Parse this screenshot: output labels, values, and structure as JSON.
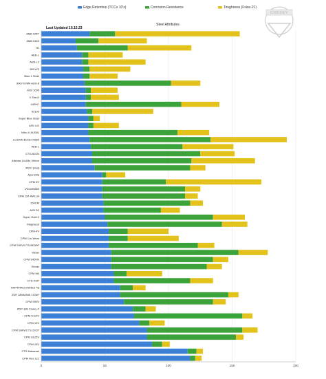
{
  "header": {
    "updated": "Last Updated 10.15.23",
    "logo_text": "CRESEY"
  },
  "colors": {
    "edge": "#3b7fd6",
    "corrosion": "#3ca33a",
    "toughness": "#e3c21b",
    "grid": "#e6e6e6",
    "axis": "#bbbbbb"
  },
  "chart_data": {
    "type": "bar",
    "orientation": "horizontal",
    "stacked": true,
    "title": "Steel Attributes",
    "legend_position": "top",
    "grid": true,
    "xlim": [
      0,
      200
    ],
    "xticks": [
      0,
      50,
      100,
      150,
      200
    ],
    "categories": [
      "AMB WRT",
      "AMB 5160",
      "H1",
      "AEB-L",
      "AEB-L2",
      "80CrV2",
      "Blue 1 Steel",
      "80CrV2/M4 AUS-8",
      "AISI 1095",
      "V-Toku2",
      "440HC",
      "52100",
      "Super Blue Steel",
      "AISI 4-E",
      "Nitro-V AUS8L",
      "LC200N Bohler N680",
      "AEB-L",
      "CTS-BD1N",
      "Alleima 14c28n Vitrum",
      "440C (real)",
      "AperuSta",
      "CPM 3V",
      "VG10/N680",
      "CPM 154 RWL34",
      "154CM",
      "AISI D2",
      "Super Gold 2",
      "Magnacut",
      "CPM-4V",
      "CPM Cru-Wear",
      "CPM S30V/CTS-BD30P",
      "Vanax",
      "CPM S45VN",
      "Elmax",
      "CPM M4",
      "CTS-XHP",
      "HAP40/REX76/REX 45",
      "ZDP 189/M398 / 20AP",
      "CPM S90V",
      "ZDP-189 Cowry X",
      "CPM S110V",
      "CPM 10V",
      "CPM S90V/CTS 20CP",
      "CPM S125V",
      "CPM 15V",
      "CTS Maxamet",
      "CPM Rex 121"
    ],
    "series": [
      {
        "name": "Edge Retention (TCCs 10's)",
        "values": [
          38,
          27,
          28,
          32,
          32,
          33,
          33,
          34,
          35,
          35,
          35,
          36,
          37,
          37,
          37,
          38,
          39,
          40,
          40,
          42,
          48,
          48,
          48,
          48,
          49,
          49,
          50,
          52,
          53,
          53,
          53,
          55,
          55,
          55,
          57,
          57,
          62,
          62,
          65,
          72,
          73,
          77,
          83,
          83,
          87,
          115,
          117
        ]
      },
      {
        "name": "Corrosion Resistance",
        "values": [
          20,
          18,
          40,
          5,
          5,
          5,
          5,
          68,
          4,
          4,
          75,
          4,
          4,
          4,
          70,
          95,
          72,
          85,
          78,
          75,
          3,
          50,
          65,
          65,
          68,
          45,
          85,
          90,
          15,
          15,
          70,
          100,
          80,
          75,
          10,
          60,
          10,
          85,
          70,
          10,
          85,
          8,
          75,
          70,
          8,
          7,
          4
        ]
      },
      {
        "name": "Toughness (Fsize-21)",
        "values": [
          98,
          38,
          50,
          27,
          45,
          32,
          22,
          23,
          21,
          22,
          30,
          48,
          5,
          20,
          25,
          60,
          40,
          27,
          50,
          12,
          15,
          75,
          12,
          10,
          10,
          15,
          25,
          20,
          32,
          40,
          13,
          23,
          12,
          12,
          28,
          18,
          10,
          8,
          10,
          8,
          8,
          12,
          12,
          6,
          6,
          5,
          5
        ]
      }
    ]
  }
}
